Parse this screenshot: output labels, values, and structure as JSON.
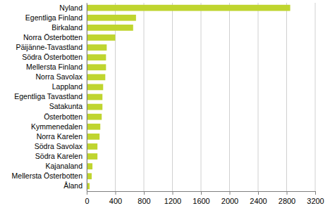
{
  "chart_data": {
    "type": "bar",
    "orientation": "horizontal",
    "categories": [
      "Nyland",
      "Egentliga Finland",
      "Birkaland",
      "Norra Österbotten",
      "Päijänne-Tavastland",
      "Södra Österbotten",
      "Mellersta Finland",
      "Norra Savolax",
      "Lappland",
      "Egentliga Tavastland",
      "Satakunta",
      "Österbotten",
      "Kymmenedalen",
      "Norra Karelen",
      "Södra Savolax",
      "Södra Karelen",
      "Kajanaland",
      "Mellersta Österbotten",
      "Åland"
    ],
    "values": [
      2850,
      690,
      650,
      400,
      280,
      270,
      270,
      260,
      230,
      220,
      220,
      210,
      190,
      180,
      150,
      150,
      80,
      70,
      40
    ],
    "color": "#bfd52f",
    "xlim": [
      0,
      3200
    ],
    "xticks": [
      0,
      400,
      800,
      1200,
      1600,
      2000,
      2400,
      2800,
      3200
    ],
    "grid": true
  }
}
